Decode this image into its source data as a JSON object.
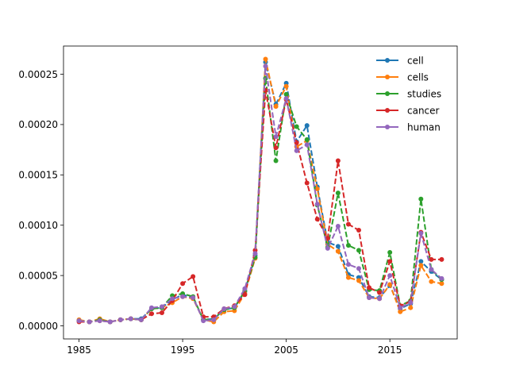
{
  "chart_data": {
    "type": "line",
    "title": "",
    "xlabel": "",
    "ylabel": "",
    "xlim": [
      1983.5,
      2021.5
    ],
    "ylim": [
      -1.3e-05,
      0.000278
    ],
    "x_ticks": [
      1985,
      1995,
      2005,
      2015
    ],
    "x_tick_labels": [
      "1985",
      "1995",
      "2005",
      "2015"
    ],
    "y_ticks": [
      0,
      5e-05,
      0.0001,
      0.00015,
      0.0002,
      0.00025
    ],
    "y_tick_labels": [
      "0.00000",
      "0.00005",
      "0.00010",
      "0.00015",
      "0.00020",
      "0.00025"
    ],
    "legend_position": "upper-right",
    "grid": false,
    "x": [
      1985,
      1986,
      1987,
      1988,
      1989,
      1990,
      1991,
      1992,
      1993,
      1994,
      1995,
      1996,
      1997,
      1998,
      1999,
      2000,
      2001,
      2002,
      2003,
      2004,
      2005,
      2006,
      2007,
      2008,
      2009,
      2010,
      2011,
      2012,
      2013,
      2014,
      2015,
      2016,
      2017,
      2018,
      2019,
      2020
    ],
    "series": [
      {
        "name": "cell",
        "color": "#1f77b4",
        "values": [
          5e-06,
          4e-06,
          6e-06,
          4e-06,
          6e-06,
          7e-06,
          7e-06,
          1.7e-05,
          1.8e-05,
          2.6e-05,
          3.1e-05,
          2.8e-05,
          6e-06,
          7e-06,
          1.6e-05,
          1.8e-05,
          3.4e-05,
          7e-05,
          0.000262,
          0.00022,
          0.000241,
          0.000183,
          0.000199,
          0.000138,
          8.3e-05,
          7.9e-05,
          5.1e-05,
          4.8e-05,
          2.9e-05,
          2.8e-05,
          4e-05,
          1.7e-05,
          2.2e-05,
          6.4e-05,
          5.4e-05,
          4.6e-05
        ]
      },
      {
        "name": "cells",
        "color": "#ff7f0e",
        "values": [
          6e-06,
          4e-06,
          7e-06,
          4e-06,
          6e-06,
          7e-06,
          6e-06,
          1.7e-05,
          1.8e-05,
          2.3e-05,
          2.9e-05,
          2.7e-05,
          6e-06,
          4e-06,
          1.4e-05,
          1.5e-05,
          3.2e-05,
          6.7e-05,
          0.000265,
          0.000218,
          0.000238,
          0.000178,
          0.000184,
          0.000136,
          8.1e-05,
          7.4e-05,
          4.8e-05,
          4.5e-05,
          2.8e-05,
          2.7e-05,
          4.1e-05,
          1.4e-05,
          1.8e-05,
          6e-05,
          4.4e-05,
          4.2e-05
        ]
      },
      {
        "name": "studies",
        "color": "#2ca02c",
        "values": [
          5e-06,
          4e-06,
          6e-06,
          4e-06,
          6e-06,
          7e-06,
          6e-06,
          1.7e-05,
          1.8e-05,
          3e-05,
          3.2e-05,
          2.9e-05,
          6e-06,
          7e-06,
          1.6e-05,
          1.8e-05,
          3.5e-05,
          6.8e-05,
          0.000246,
          0.000164,
          0.00023,
          0.000198,
          0.000185,
          0.00012,
          7.8e-05,
          0.000132,
          8e-05,
          7.5e-05,
          3.6e-05,
          3.5e-05,
          7.3e-05,
          2e-05,
          2.5e-05,
          0.000126,
          5.6e-05,
          4.6e-05
        ]
      },
      {
        "name": "cancer",
        "color": "#d62728",
        "values": [
          4e-06,
          4e-06,
          5e-06,
          4e-06,
          6e-06,
          7e-06,
          6e-06,
          1.2e-05,
          1.3e-05,
          2.5e-05,
          4.2e-05,
          4.9e-05,
          9e-06,
          9e-06,
          1.7e-05,
          2e-05,
          3.1e-05,
          7.5e-05,
          0.000234,
          0.000177,
          0.000225,
          0.000182,
          0.000142,
          0.000106,
          8.7e-05,
          0.000164,
          0.000101,
          9.5e-05,
          3.8e-05,
          3.3e-05,
          6.4e-05,
          2e-05,
          2.4e-05,
          9.3e-05,
          6.6e-05,
          6.6e-05
        ]
      },
      {
        "name": "human",
        "color": "#9467bd",
        "values": [
          5e-06,
          4e-06,
          5e-06,
          4e-06,
          6e-06,
          7e-06,
          6e-06,
          1.8e-05,
          1.9e-05,
          2.7e-05,
          2.9e-05,
          2.8e-05,
          5e-06,
          6e-06,
          1.7e-05,
          1.9e-05,
          3.7e-05,
          7.2e-05,
          0.000258,
          0.000188,
          0.000226,
          0.000174,
          0.00018,
          0.000121,
          7.7e-05,
          9.9e-05,
          6.1e-05,
          5.7e-05,
          2.8e-05,
          2.7e-05,
          5e-05,
          1.8e-05,
          2.3e-05,
          9.2e-05,
          5.6e-05,
          4.7e-05
        ]
      }
    ]
  }
}
